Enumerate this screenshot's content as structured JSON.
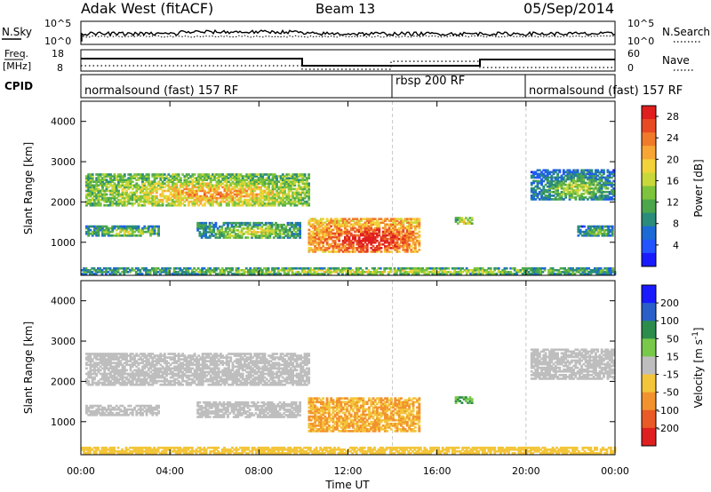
{
  "header": {
    "station": "Adak West (fitACF)",
    "beam": "Beam 13",
    "date": "05/Sep/2014"
  },
  "strips": {
    "nsky_label": "N.Sky",
    "nsearch_label": "N.Search",
    "nsky_ticks": [
      "10^5",
      "10^0"
    ],
    "nsearch_ticks": [
      "10^5",
      "10^0"
    ],
    "freq_label": "Freq.",
    "freq_unit": "[MHz]",
    "freq_ticks": [
      "18",
      "8"
    ],
    "nave_label": "Nave",
    "nave_ticks": [
      "60",
      "0"
    ],
    "cpid_label": "CPID"
  },
  "cpid_segments": [
    {
      "label": "normalsound (fast) 157 RF",
      "start_hour": 0,
      "end_hour": 14
    },
    {
      "label": "rbsp 200 RF",
      "start_hour": 14,
      "end_hour": 20
    },
    {
      "label": "normalsound (fast) 157 RF",
      "start_hour": 20,
      "end_hour": 24
    }
  ],
  "x_axis": {
    "label": "Time UT",
    "ticks": [
      "00:00",
      "04:00",
      "08:00",
      "12:00",
      "16:00",
      "20:00",
      "00:00"
    ]
  },
  "chart_data": [
    {
      "type": "heatmap",
      "panel": "power",
      "ylabel": "Slant Range [km]",
      "ylim": [
        180,
        4500
      ],
      "yticks": [
        1000,
        2000,
        3000,
        4000
      ],
      "xlim_hours": [
        0,
        24
      ],
      "colorbar": {
        "label": "Power [dB]",
        "ticks": [
          28,
          24,
          20,
          16,
          12,
          8,
          4
        ],
        "range": [
          0,
          30
        ],
        "colors": [
          "#1a1aff",
          "#2255ff",
          "#1c6ad6",
          "#2a8c7a",
          "#4ca64c",
          "#7dc43c",
          "#c8d83a",
          "#f2d23a",
          "#f7a636",
          "#f07a2a",
          "#e84a24",
          "#e01e1e"
        ]
      },
      "echo_regions": [
        {
          "h": [
            0.2,
            10.2
          ],
          "range_km": [
            1900,
            2700
          ],
          "power_db": 12
        },
        {
          "h": [
            0.2,
            3.5
          ],
          "range_km": [
            1150,
            1400
          ],
          "power_db": 8
        },
        {
          "h": [
            5.2,
            9.8
          ],
          "range_km": [
            1100,
            1500
          ],
          "power_db": 8
        },
        {
          "h": [
            10.2,
            15.2
          ],
          "range_km": [
            750,
            1600
          ],
          "power_db": 20
        },
        {
          "h": [
            16.8,
            17.6
          ],
          "range_km": [
            1450,
            1600
          ],
          "power_db": 12
        },
        {
          "h": [
            20.2,
            23.9
          ],
          "range_km": [
            2050,
            2800
          ],
          "power_db": 6
        },
        {
          "h": [
            22.3,
            23.9
          ],
          "range_km": [
            1150,
            1400
          ],
          "power_db": 6
        },
        {
          "h": [
            0,
            24
          ],
          "range_km": [
            200,
            380
          ],
          "power_db": 8
        }
      ]
    },
    {
      "type": "heatmap",
      "panel": "velocity",
      "ylabel": "Slant Range [km]",
      "ylim": [
        180,
        4500
      ],
      "yticks": [
        1000,
        2000,
        3000,
        4000
      ],
      "xlim_hours": [
        0,
        24
      ],
      "colorbar": {
        "label": "Velocity [m s^-1]",
        "unit_text": "Velocity [m s",
        "unit_sup": "-1",
        "unit_close": "]",
        "ticks": [
          200,
          100,
          50,
          15,
          -15,
          -50,
          -100,
          -200
        ],
        "colors": [
          "#1a1aff",
          "#2a5fc9",
          "#2c8c4c",
          "#78c84a",
          "#bebebe",
          "#f3c53a",
          "#f2922e",
          "#ea5a26",
          "#e02020"
        ]
      },
      "echo_regions": [
        {
          "h": [
            0.2,
            10.2
          ],
          "range_km": [
            1900,
            2700
          ],
          "velocity": 0
        },
        {
          "h": [
            0.2,
            3.5
          ],
          "range_km": [
            1150,
            1400
          ],
          "velocity": 0
        },
        {
          "h": [
            5.2,
            9.8
          ],
          "range_km": [
            1100,
            1500
          ],
          "velocity": 0
        },
        {
          "h": [
            10.2,
            15.2
          ],
          "range_km": [
            750,
            1600
          ],
          "velocity": -50
        },
        {
          "h": [
            16.8,
            17.6
          ],
          "range_km": [
            1450,
            1600
          ],
          "velocity": 50
        },
        {
          "h": [
            20.2,
            23.9
          ],
          "range_km": [
            2050,
            2800
          ],
          "velocity": 0
        },
        {
          "h": [
            0,
            24
          ],
          "range_km": [
            200,
            380
          ],
          "velocity": -30
        }
      ]
    }
  ]
}
